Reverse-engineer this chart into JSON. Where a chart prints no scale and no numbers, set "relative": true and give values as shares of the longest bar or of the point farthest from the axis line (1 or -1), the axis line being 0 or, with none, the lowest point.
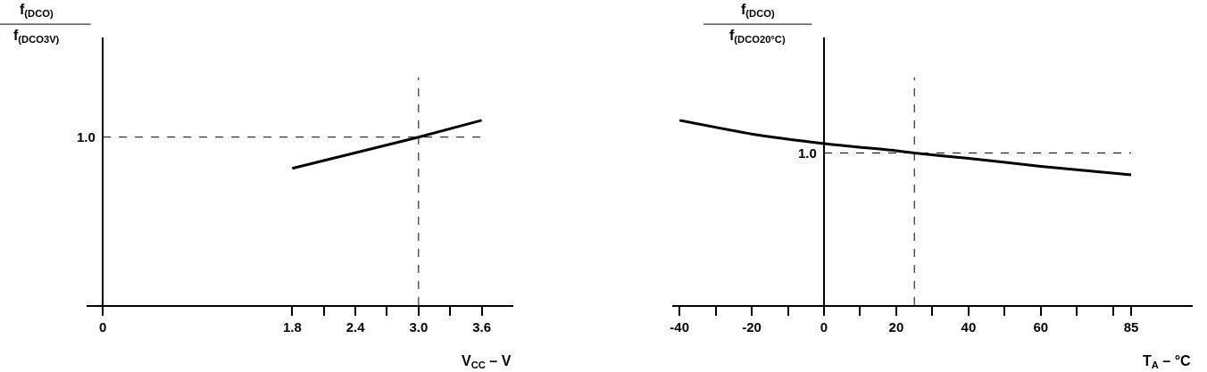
{
  "chart_data": [
    {
      "type": "line",
      "xlabel": "V$_{CC}$ – V",
      "ylabel": "f$_{(DCO)}$\nf$_{(DCO3V)}$",
      "x": [
        1.8,
        3.0,
        3.6
      ],
      "series": [
        {
          "color": "#000000",
          "values": [
            0.74,
            0.909,
            1.0
          ]
        }
      ],
      "relative": true,
      "annotations": [
        "1.0"
      ],
      "xlim": [
        -0.15,
        3.9
      ],
      "xticks": [
        0,
        1.8,
        {
          "value": 2.1,
          "label": null
        },
        2.4,
        {
          "value": 2.7,
          "label": null
        },
        {
          "value": 3.0,
          "label": "3.0"
        },
        {
          "value": 3.3,
          "label": null
        },
        3.6
      ],
      "ref_lines": [
        {
          "axis": "y",
          "value": 0.909,
          "line_style": "dashed",
          "color": "#000000"
        },
        {
          "axis": "x",
          "value": 3.0,
          "line_style": "dashed",
          "color": "#000000"
        }
      ]
    },
    {
      "type": "line",
      "xlabel": "T$_{A}$ – °C",
      "ylabel": "f$_{(DCO)}$\nf$_{(DCO20°C)}$",
      "x": [
        -40,
        -20,
        0,
        20,
        25,
        40,
        60,
        85
      ],
      "series": [
        {
          "color": "#000000",
          "values": [
            1.0,
            0.926,
            0.874,
            0.835,
            0.823,
            0.794,
            0.751,
            0.705
          ]
        }
      ],
      "relative": true,
      "annotations": [
        "1.0"
      ],
      "xlim": [
        -42,
        102
      ],
      "xticks": [
        -40,
        {
          "value": -30,
          "label": null
        },
        -20,
        {
          "value": -10,
          "label": null
        },
        0,
        {
          "value": 10,
          "label": null
        },
        20,
        {
          "value": 30,
          "label": null
        },
        40,
        {
          "value": 50,
          "label": null
        },
        60,
        {
          "value": 70,
          "label": null
        },
        {
          "value": 80,
          "label": null
        },
        85
      ],
      "ref_lines": [
        {
          "axis": "y",
          "value": 0.823,
          "line_style": "dashed",
          "color": "#000000"
        },
        {
          "axis": "x",
          "value": 25,
          "line_style": "dashed",
          "color": "#000000"
        }
      ]
    }
  ]
}
